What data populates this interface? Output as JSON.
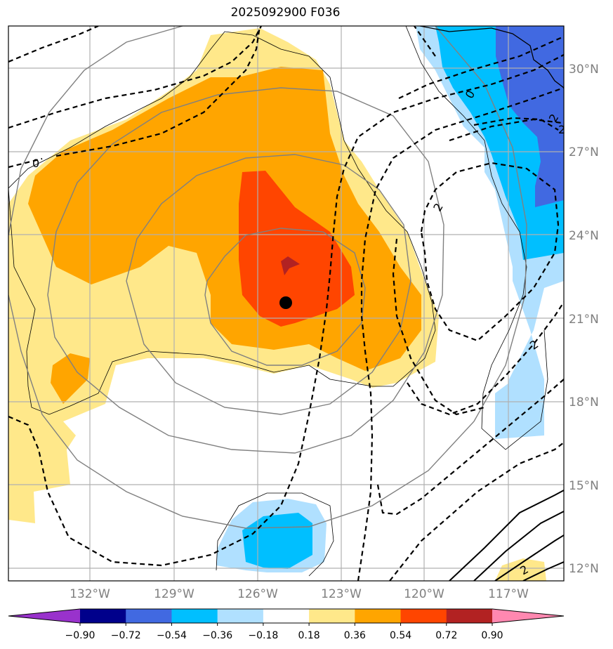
{
  "title": "2025092900 F036",
  "lon_labels": [
    "132°W",
    "129°W",
    "126°W",
    "123°W",
    "120°W",
    "117°W"
  ],
  "lat_labels": [
    "30°N",
    "27°N",
    "24°N",
    "21°N",
    "18°N",
    "15°N",
    "12°N"
  ],
  "contour_labels": [
    "0",
    "0",
    "2",
    "2",
    "2",
    "2",
    "2"
  ],
  "colorbar": {
    "ticks": [
      "−0.90",
      "−0.72",
      "−0.54",
      "−0.36",
      "−0.18",
      "0.18",
      "0.36",
      "0.54",
      "0.72",
      "0.90"
    ],
    "colors": [
      "#9932cc",
      "#00008b",
      "#4169e1",
      "#00bfff",
      "#b0e0ff",
      "#ffffff",
      "#ffe88a",
      "#ffa500",
      "#ff4500",
      "#b22222",
      "#ff88b0"
    ]
  },
  "storm_center": "filled black dot near 21.5°N 124.9°W"
}
